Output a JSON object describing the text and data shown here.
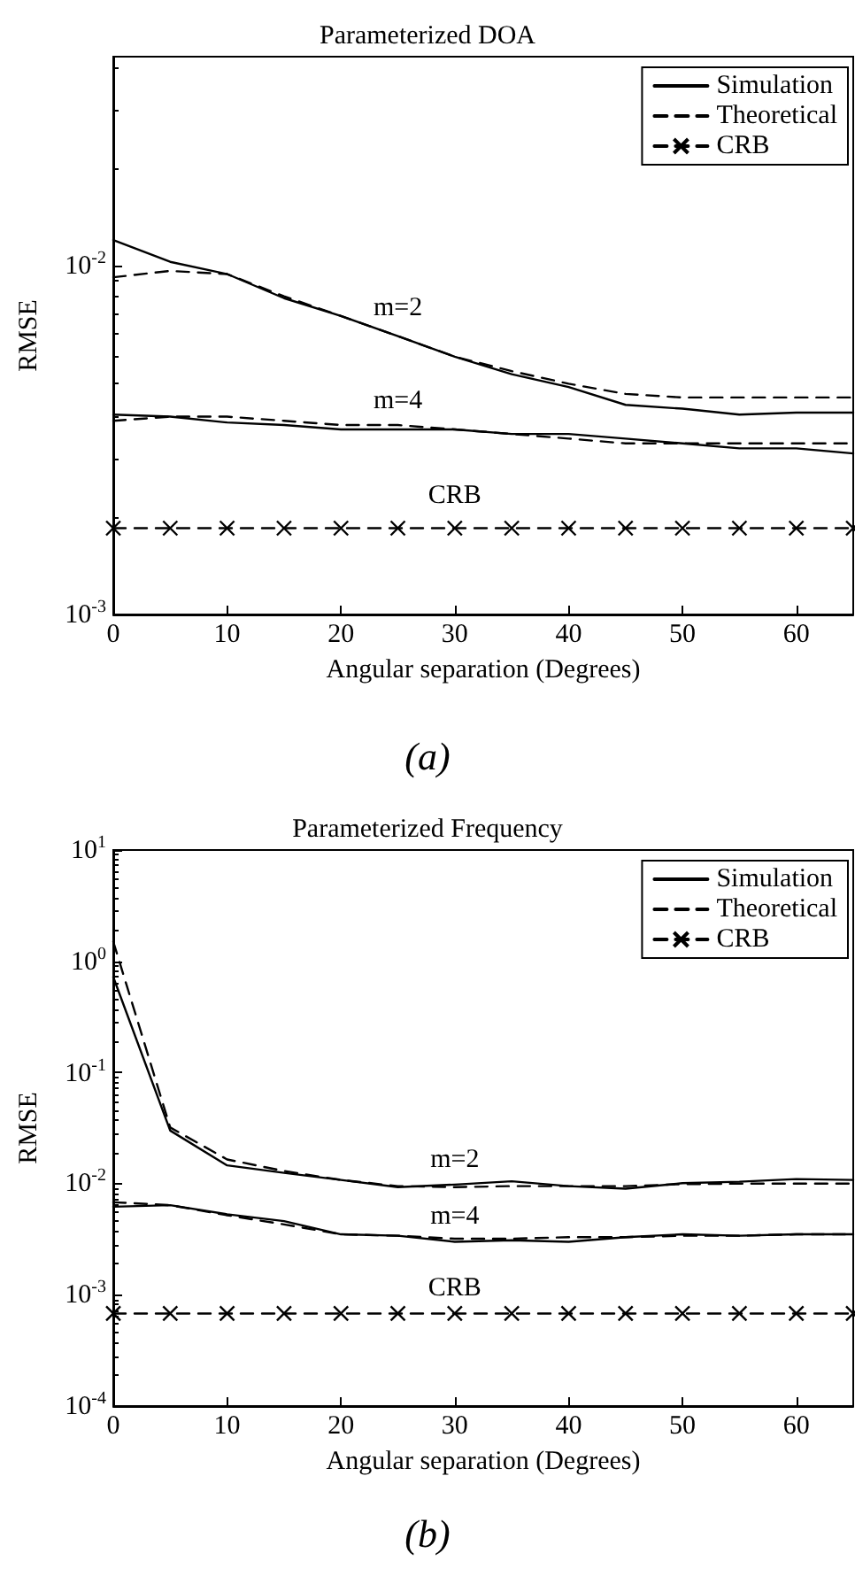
{
  "chart_data": [
    {
      "type": "line",
      "title": "Parameterized DOA",
      "xlabel": "Angular separation (Degrees)",
      "ylabel": "RMSE",
      "x": [
        0,
        5,
        10,
        15,
        20,
        25,
        30,
        35,
        40,
        45,
        50,
        55,
        60,
        65
      ],
      "series": [
        {
          "name": "Simulation",
          "color": "#000000",
          "line_style": "solid",
          "marker": "none",
          "values": [
            0.0119,
            0.0103,
            0.0095,
            0.0081,
            0.0072,
            0.0063,
            0.0055,
            0.0049,
            0.0045,
            0.004,
            0.0039,
            0.00375,
            0.0038,
            0.0038
          ]
        },
        {
          "name": "Theoretical",
          "color": "#000000",
          "line_style": "dashed",
          "marker": "none",
          "values": [
            0.0093,
            0.0097,
            0.0095,
            0.0082,
            0.0072,
            0.0063,
            0.0055,
            0.005,
            0.0046,
            0.0043,
            0.0042,
            0.0042,
            0.0042,
            0.0042
          ]
        },
        {
          "color": "#000000",
          "line_style": "solid",
          "marker": "none",
          "values": [
            0.00375,
            0.0037,
            0.00356,
            0.0035,
            0.0034,
            0.0034,
            0.0034,
            0.0033,
            0.0033,
            0.0032,
            0.0031,
            0.003,
            0.003,
            0.0029
          ]
        },
        {
          "color": "#000000",
          "line_style": "dashed",
          "marker": "none",
          "values": [
            0.0036,
            0.0037,
            0.0037,
            0.0036,
            0.0035,
            0.0035,
            0.0034,
            0.0033,
            0.0032,
            0.0031,
            0.0031,
            0.0031,
            0.0031,
            0.0031
          ]
        },
        {
          "name": "CRB",
          "color": "#000000",
          "line_style": "dashed",
          "marker": "cross",
          "values": [
            0.00177,
            0.00177,
            0.00177,
            0.00177,
            0.00177,
            0.00177,
            0.00177,
            0.00177,
            0.00177,
            0.00177,
            0.00177,
            0.00177,
            0.00177,
            0.00177
          ]
        }
      ],
      "log": "y",
      "xlim": [
        0,
        65
      ],
      "xticks": [
        0,
        10,
        20,
        30,
        40,
        50,
        60
      ],
      "ylim": [
        0.001,
        0.04
      ],
      "yticks": [
        {
          "value": 0.001,
          "label": "10$^{-3}$"
        },
        {
          "value": 0.01,
          "label": "10$^{-2}$"
        }
      ],
      "legend": "top right",
      "grid": false,
      "annotations": [
        "m=2",
        "m=4",
        "CRB",
        "(a)"
      ]
    },
    {
      "type": "line",
      "title": "Parameterized Frequency",
      "xlabel": "Angular separation (Degrees)",
      "ylabel": "RMSE",
      "x": [
        0,
        5,
        10,
        15,
        20,
        25,
        30,
        35,
        40,
        45,
        50,
        55,
        60,
        65
      ],
      "series": [
        {
          "name": "Simulation",
          "color": "#000000",
          "line_style": "solid",
          "marker": "none",
          "values": [
            0.72,
            0.03,
            0.0146,
            0.0125,
            0.0108,
            0.0093,
            0.0098,
            0.0105,
            0.0095,
            0.009,
            0.0101,
            0.0104,
            0.011,
            0.0108
          ]
        },
        {
          "name": "Theoretical",
          "color": "#000000",
          "line_style": "dashed",
          "marker": "none",
          "values": [
            1.5,
            0.032,
            0.0165,
            0.013,
            0.0108,
            0.0095,
            0.0093,
            0.0095,
            0.0095,
            0.0095,
            0.0099,
            0.01,
            0.01,
            0.01
          ]
        },
        {
          "color": "#000000",
          "line_style": "solid",
          "marker": "none",
          "values": [
            0.0062,
            0.0064,
            0.0053,
            0.0046,
            0.0035,
            0.0034,
            0.003,
            0.0031,
            0.003,
            0.0033,
            0.0035,
            0.0034,
            0.0035,
            0.0035
          ]
        },
        {
          "color": "#000000",
          "line_style": "dashed",
          "marker": "none",
          "values": [
            0.0068,
            0.0064,
            0.0052,
            0.0043,
            0.0035,
            0.0034,
            0.0032,
            0.0032,
            0.0033,
            0.0033,
            0.0034,
            0.0034,
            0.0035,
            0.0035
          ]
        },
        {
          "name": "CRB",
          "color": "#000000",
          "line_style": "dashed",
          "marker": "cross",
          "values": [
            0.00068,
            0.00068,
            0.00068,
            0.00068,
            0.00068,
            0.00068,
            0.00068,
            0.00068,
            0.00068,
            0.00068,
            0.00068,
            0.00068,
            0.00068,
            0.00068
          ]
        }
      ],
      "log": "y",
      "xlim": [
        0,
        65
      ],
      "xticks": [
        0,
        10,
        20,
        30,
        40,
        50,
        60
      ],
      "ylim": [
        0.0001,
        10
      ],
      "yticks": [
        {
          "value": 0.0001,
          "label": "10$^{-4}$"
        },
        {
          "value": 0.001,
          "label": "10$^{-3}$"
        },
        {
          "value": 0.01,
          "label": "10$^{-2}$"
        },
        {
          "value": 0.1,
          "label": "10$^{-1}$"
        },
        {
          "value": 1,
          "label": "10$^{0}$"
        },
        {
          "value": 10,
          "label": "10$^{1}$"
        }
      ],
      "legend": "top right",
      "grid": false,
      "annotations": [
        "m=2",
        "m=4",
        "CRB",
        "(b)"
      ]
    }
  ]
}
